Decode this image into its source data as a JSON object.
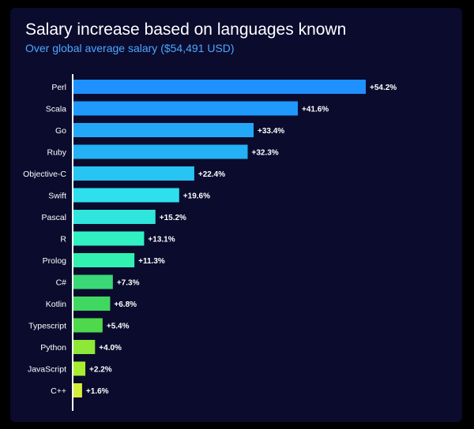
{
  "chart_data": {
    "type": "bar",
    "orientation": "horizontal",
    "title": "Salary increase based on languages known",
    "subtitle": "Over global average salary ($54,491 USD)",
    "xlabel": "",
    "ylabel": "",
    "xlim": [
      0,
      54.2
    ],
    "grid": false,
    "categories": [
      "Perl",
      "Scala",
      "Go",
      "Ruby",
      "Objective-C",
      "Swift",
      "Pascal",
      "R",
      "Prolog",
      "C#",
      "Kotlin",
      "Typescript",
      "Python",
      "JavaScript",
      "C++"
    ],
    "values": [
      54.2,
      41.6,
      33.4,
      32.3,
      22.4,
      19.6,
      15.2,
      13.1,
      11.3,
      7.3,
      6.8,
      5.4,
      4.0,
      2.2,
      1.6
    ],
    "value_labels": [
      "+54.2%",
      "+41.6%",
      "+33.4%",
      "+32.3%",
      "+22.4%",
      "+19.6%",
      "+15.2%",
      "+13.1%",
      "+11.3%",
      "+7.3%",
      "+6.8%",
      "+5.4%",
      "+4.0%",
      "+2.2%",
      "+1.6%"
    ],
    "colors": [
      "#1e90ff",
      "#1f9afc",
      "#23a8f8",
      "#24b1f6",
      "#28c4f2",
      "#2ee0ee",
      "#30e6dc",
      "#30f0c4",
      "#31f0b0",
      "#3ad877",
      "#40d860",
      "#4ed84c",
      "#8ee838",
      "#a8ee30",
      "#d4ee3a"
    ]
  },
  "colors": {
    "background": "#0b0b2e",
    "axis": "#ffffff",
    "text": "#ffffff",
    "subtitle": "#4aa8ff"
  }
}
